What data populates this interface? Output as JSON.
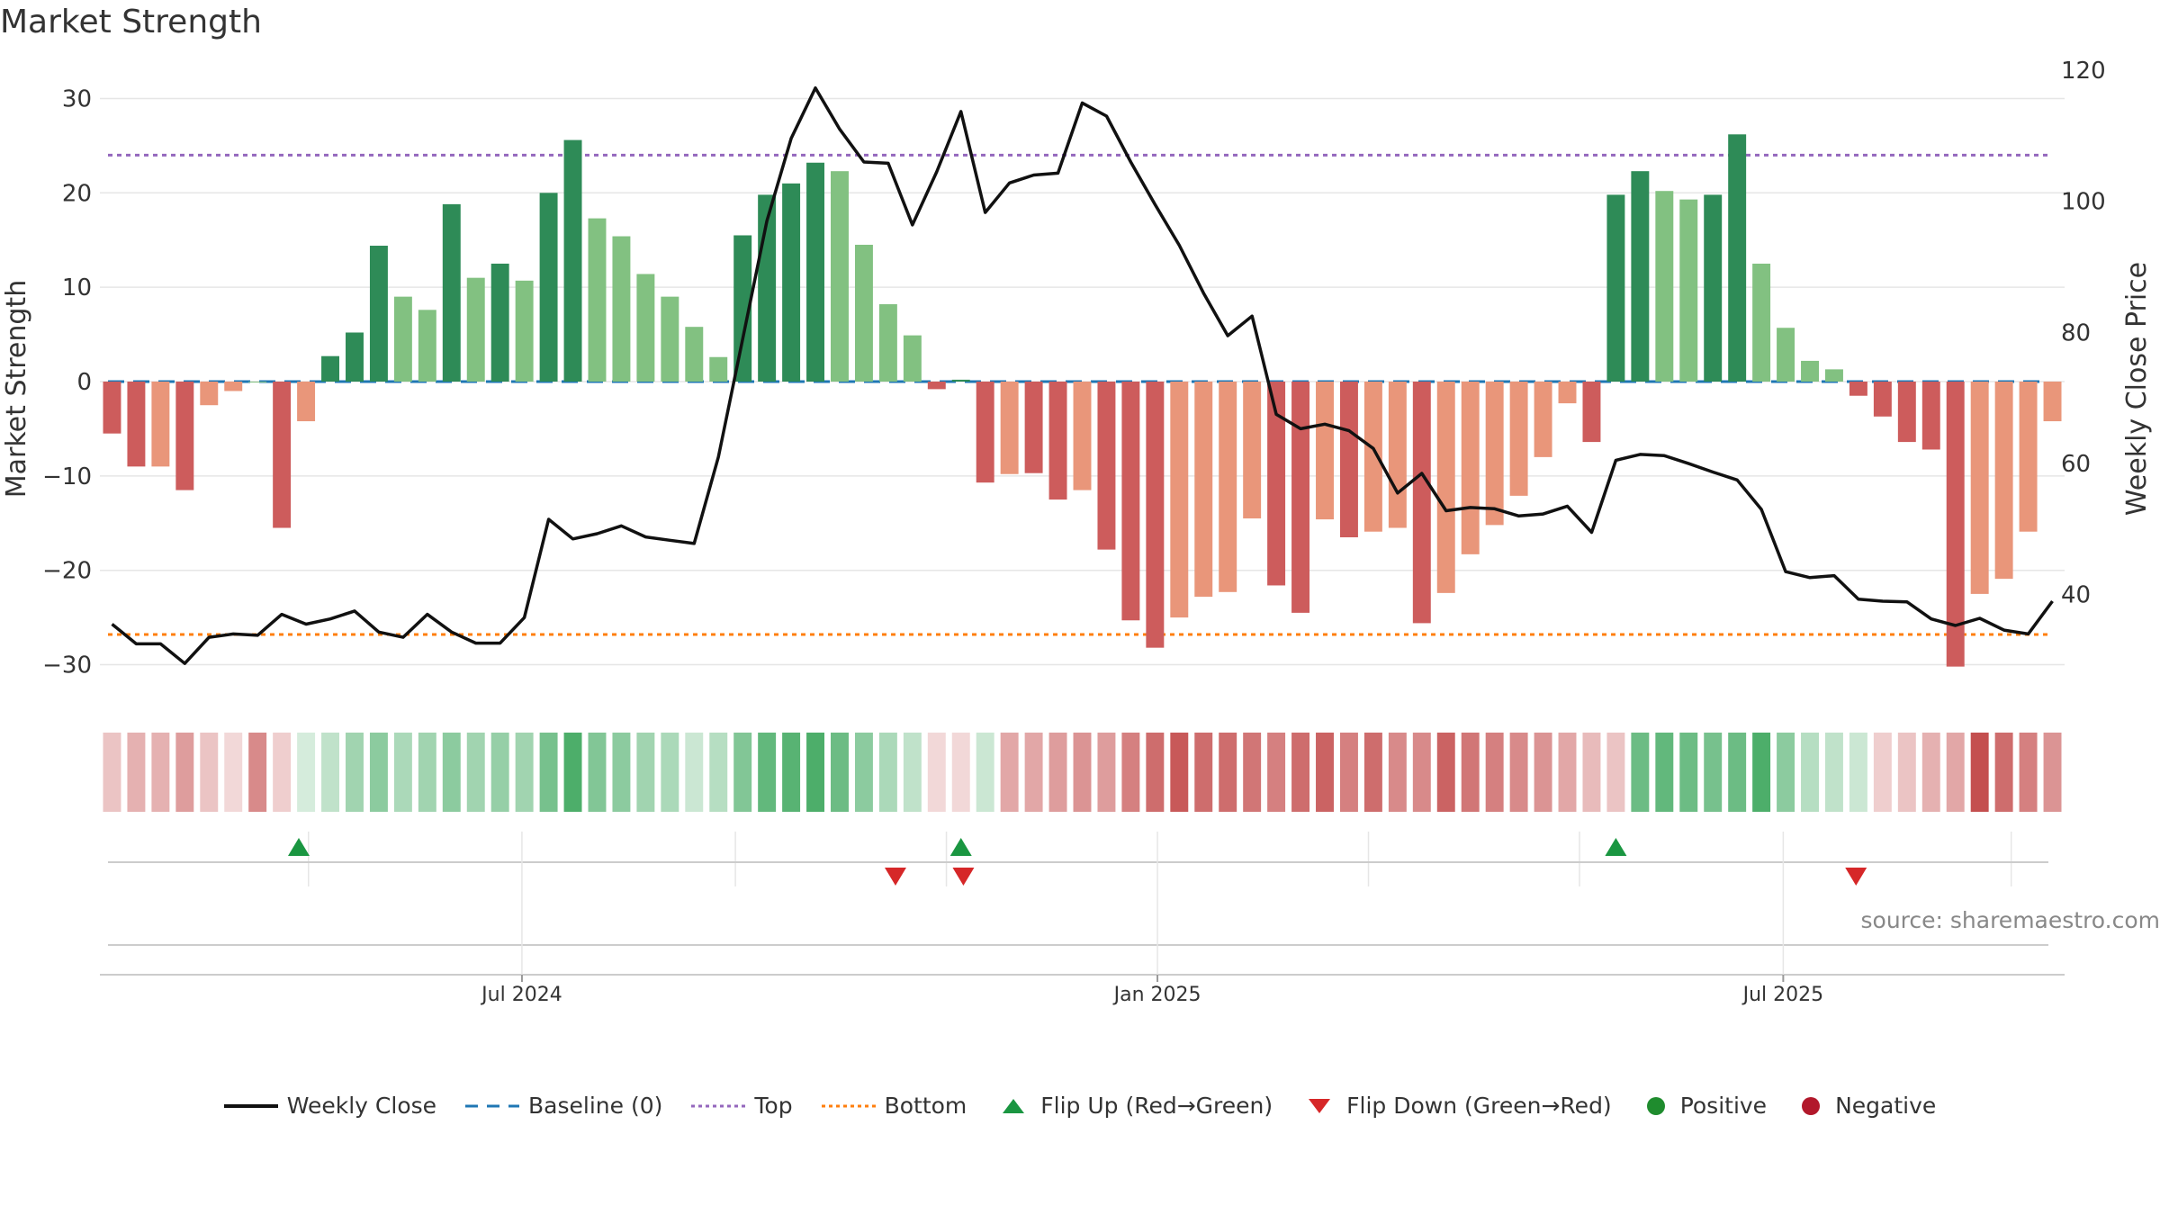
{
  "title": "Market Strength",
  "source": "source: sharemaestro.com",
  "colors": {
    "up_dark": "#2e8b57",
    "up_light": "#82c181",
    "down_dark": "#cd5c5c",
    "down_light": "#e9967a",
    "price": "#111111",
    "baseline": "#1f77b4",
    "top": "#9467bd",
    "bottom": "#ff7f0e",
    "flip_up": "#1a9641",
    "flip_down": "#d62728",
    "positive": "#1f8c2e",
    "negative": "#b2182b",
    "grid": "#e6e6e6"
  },
  "legend": [
    {
      "key": "close",
      "label": "Weekly Close"
    },
    {
      "key": "baseline",
      "label": "Baseline (0)"
    },
    {
      "key": "top",
      "label": "Top"
    },
    {
      "key": "bottom",
      "label": "Bottom"
    },
    {
      "key": "flip_up",
      "label": "Flip Up (Red→Green)"
    },
    {
      "key": "flip_down",
      "label": "Flip Down (Green→Red)"
    },
    {
      "key": "positive",
      "label": "Positive"
    },
    {
      "key": "negative",
      "label": "Negative"
    }
  ],
  "chart_data": {
    "type": "bar",
    "title": "Market Strength",
    "ylabel": "Market Strength",
    "y2label": "Weekly Close Price",
    "ylim": [
      -33,
      33
    ],
    "y_ticks": [
      30,
      20,
      10,
      0,
      -10,
      -20,
      -30
    ],
    "y_tick_labels": [
      "30",
      "20",
      "10",
      "0",
      "−10",
      "−20",
      "−30"
    ],
    "y2lim": [
      25,
      120
    ],
    "y2_ticks": [
      120,
      100,
      80,
      60,
      40
    ],
    "y2_tick_labels": [
      "120",
      "100",
      "80",
      "60",
      "40"
    ],
    "x_tick_labels": [
      {
        "label": "Jul 2024",
        "week": 17.4
      },
      {
        "label": "Jan 2025",
        "week": 43.6
      },
      {
        "label": "Jul 2025",
        "week": 69.4
      }
    ],
    "x_minor_weeks": [
      8.6,
      26.2,
      34.9,
      52.3,
      61.0,
      78.8
    ],
    "top_line": 24,
    "bottom_line": -26.8,
    "strength": [
      -5.5,
      -9,
      -9,
      -11.5,
      -2.5,
      -1,
      0,
      -15.5,
      -4.2,
      2.7,
      5.2,
      14.4,
      9,
      7.6,
      18.8,
      11,
      12.5,
      10.7,
      20,
      25.6,
      17.3,
      15.4,
      11.4,
      9,
      5.8,
      2.6,
      15.5,
      19.8,
      21,
      23.2,
      22.3,
      14.5,
      8.2,
      4.9,
      -0.8,
      0.2,
      -10.7,
      -9.8,
      -9.7,
      -12.5,
      -11.5,
      -17.8,
      -25.3,
      -28.2,
      -25,
      -22.8,
      -22.3,
      -14.5,
      -21.6,
      -24.5,
      -14.6,
      -16.5,
      -15.9,
      -15.5,
      -25.6,
      -22.4,
      -18.3,
      -15.2,
      -12.1,
      -8,
      -2.3,
      -6.4,
      19.8,
      22.3,
      20.2,
      19.3,
      19.8,
      26.2,
      12.5,
      5.7,
      2.2,
      1.3,
      -1.5,
      -3.7,
      -6.4,
      -7.2,
      -30.2,
      -22.5,
      -20.9,
      -15.9,
      -4.2
    ],
    "shade": [
      "dark",
      "dark",
      "light",
      "dark",
      "light",
      "light",
      "light",
      "dark",
      "light",
      "dark",
      "dark",
      "dark",
      "light",
      "light",
      "dark",
      "light",
      "dark",
      "light",
      "dark",
      "dark",
      "light",
      "light",
      "light",
      "light",
      "light",
      "light",
      "dark",
      "dark",
      "dark",
      "dark",
      "light",
      "light",
      "light",
      "light",
      "dark",
      "dark",
      "dark",
      "light",
      "dark",
      "dark",
      "light",
      "dark",
      "dark",
      "dark",
      "light",
      "light",
      "light",
      "light",
      "dark",
      "dark",
      "light",
      "dark",
      "light",
      "light",
      "dark",
      "light",
      "light",
      "light",
      "light",
      "light",
      "light",
      "dark",
      "dark",
      "dark",
      "light",
      "light",
      "dark",
      "dark",
      "light",
      "light",
      "light",
      "light",
      "dark",
      "dark",
      "dark",
      "dark",
      "dark",
      "light",
      "light",
      "light",
      "light"
    ],
    "weekly_close": [
      35.5,
      32.5,
      32.5,
      29.5,
      33.5,
      34,
      33.8,
      37,
      35.5,
      36.3,
      37.5,
      34.3,
      33.5,
      37,
      34.3,
      32.6,
      32.6,
      36.5,
      51.5,
      48.5,
      49.3,
      50.5,
      48.8,
      48.3,
      47.8,
      61,
      79,
      97,
      109.6,
      117.3,
      111,
      106,
      105.8,
      96.4,
      104.5,
      113.7,
      98.3,
      102.8,
      104,
      104.3,
      115,
      113,
      106,
      99.5,
      93.3,
      86,
      79.5,
      82.5,
      67.5,
      65.3,
      66,
      65,
      62.3,
      55.5,
      58.5,
      52.8,
      53.3,
      53.1,
      52,
      52.3,
      53.5,
      49.5,
      60.5,
      61.4,
      61.2,
      60,
      58.7,
      57.5,
      53,
      43.5,
      42.6,
      42.9,
      39.3,
      39,
      38.9,
      36.3,
      35.3,
      36.4,
      34.6,
      34,
      39
    ],
    "heat_strip": [
      -0.3,
      -0.4,
      -0.4,
      -0.5,
      -0.3,
      -0.2,
      -0.6,
      -0.25,
      0.2,
      0.3,
      0.45,
      0.55,
      0.4,
      0.45,
      0.55,
      0.45,
      0.5,
      0.45,
      0.65,
      0.85,
      0.6,
      0.55,
      0.45,
      0.4,
      0.25,
      0.35,
      0.6,
      0.75,
      0.8,
      0.85,
      0.7,
      0.55,
      0.4,
      0.3,
      -0.2,
      -0.2,
      0.25,
      -0.45,
      -0.45,
      -0.5,
      -0.55,
      -0.5,
      -0.65,
      -0.75,
      -0.85,
      -0.75,
      -0.75,
      -0.7,
      -0.65,
      -0.75,
      -0.8,
      -0.65,
      -0.75,
      -0.6,
      -0.6,
      -0.8,
      -0.7,
      -0.65,
      -0.6,
      -0.55,
      -0.45,
      -0.35,
      -0.3,
      0.7,
      0.75,
      0.7,
      0.65,
      0.7,
      0.85,
      0.55,
      0.35,
      0.3,
      0.25,
      -0.25,
      -0.3,
      -0.4,
      -0.45,
      -0.9,
      -0.75,
      -0.65,
      -0.55
    ],
    "flip_up_weeks": [
      8.2,
      35.5,
      62.5
    ],
    "flip_down_weeks": [
      32.8,
      35.6,
      72.4
    ]
  }
}
